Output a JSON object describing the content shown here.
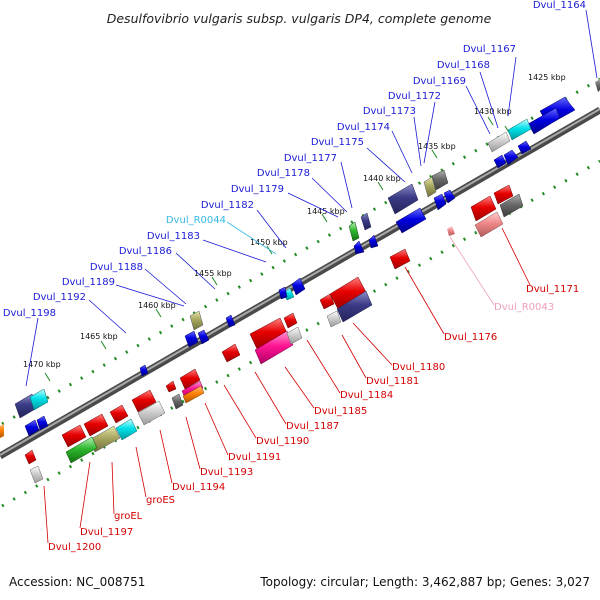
{
  "title": "Desulfovibrio vulgaris subsp. vulgaris DP4, complete genome",
  "footer": {
    "accession": "Accession: NC_008751",
    "topology": "Topology: circular; Length: 3,462,887 bp; Genes: 3,027"
  },
  "colors": {
    "forward_label": "#1a1ad6",
    "reverse_label": "#d40000",
    "rna_forward_label": "#35b9e6",
    "rna_reverse_label": "#f0a0b8",
    "backbone": "#6e6e6e",
    "tick_dots": "#228B22"
  },
  "ticks": [
    "1425 kbp",
    "1430 kbp",
    "1435 kbp",
    "1440 kbp",
    "1445 kbp",
    "1450 kbp",
    "1455 kbp",
    "1460 kbp",
    "1465 kbp",
    "1470 kbp"
  ],
  "forward_genes": [
    "Dvul_1164",
    "Dvul_1167",
    "Dvul_1168",
    "Dvul_1169",
    "Dvul_1172",
    "Dvul_1173",
    "Dvul_1174",
    "Dvul_1175",
    "Dvul_1177",
    "Dvul_1178",
    "Dvul_1179",
    "Dvul_1182",
    "Dvul_R0044",
    "Dvul_1183",
    "Dvul_1186",
    "Dvul_1188",
    "Dvul_1189",
    "Dvul_1192",
    "Dvul_1198"
  ],
  "reverse_genes": [
    "Dvul_1171",
    "Dvul_R0043",
    "Dvul_1176",
    "Dvul_1180",
    "Dvul_1181",
    "Dvul_1184",
    "Dvul_1185",
    "Dvul_1187",
    "Dvul_1190",
    "Dvul_1191",
    "Dvul_1193",
    "Dvul_1194",
    "groES",
    "groEL",
    "Dvul_1197",
    "Dvul_1200"
  ]
}
